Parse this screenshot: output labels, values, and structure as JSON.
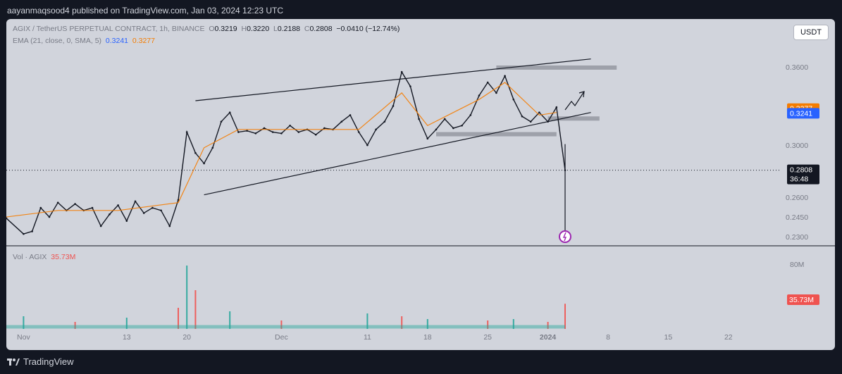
{
  "header": {
    "publisher_line": "aayanmaqsood4 published on TradingView.com, Jan 03, 2024 12:23 UTC"
  },
  "legend": {
    "symbol": "AGIX / TetherUS PERPETUAL CONTRACT, 1h, BINANCE",
    "o_label": "O",
    "o": "0.3219",
    "h_label": "H",
    "h": "0.3220",
    "l_label": "L",
    "l": "0.2188",
    "c_label": "C",
    "c": "0.2808",
    "change": "−0.0410 (−12.74%)",
    "ema_label": "EMA (21, close, 0, SMA, 5)",
    "ema_val1": "0.3241",
    "ema_val2": "0.3277",
    "vol_label": "Vol · AGIX",
    "vol_value": "35.73M"
  },
  "currency_button": "USDT",
  "price_labels": {
    "orange": "0.3277",
    "blue": "0.3241",
    "last": "0.2808",
    "countdown": "36:48",
    "volume": "35.73M"
  },
  "footer": {
    "brand": "TradingView"
  },
  "colors": {
    "background": "#131722",
    "chart_bg": "#d1d4dc",
    "candle": "#131722",
    "ema": "#f57c00",
    "ema_blue": "#2962ff",
    "volume_up": "#26a69a",
    "volume_down": "#ef5350",
    "zone": "#9598a1",
    "alert": "#9c27b0"
  },
  "chart_data": {
    "type": "line",
    "title": "AGIX / TetherUS PERPETUAL CONTRACT, 1h, BINANCE",
    "xlabel": "",
    "ylabel": "",
    "ylim": [
      0.224,
      0.375
    ],
    "y_ticks": [
      0.23,
      0.245,
      0.26,
      0.3,
      0.36
    ],
    "y_tick_labels": [
      "0.2300",
      "0.2450",
      "0.2600",
      "0.3000",
      "0.3600"
    ],
    "x_ticks": [
      {
        "date": "2023-11-01",
        "label": "Nov"
      },
      {
        "date": "2023-11-13",
        "label": "13"
      },
      {
        "date": "2023-11-20",
        "label": "20"
      },
      {
        "date": "2023-12-01",
        "label": "Dec"
      },
      {
        "date": "2023-12-11",
        "label": "11"
      },
      {
        "date": "2023-12-18",
        "label": "18"
      },
      {
        "date": "2023-12-25",
        "label": "25"
      },
      {
        "date": "2024-01-01",
        "label": "2024"
      },
      {
        "date": "2024-01-08",
        "label": "8"
      },
      {
        "date": "2024-01-15",
        "label": "15"
      },
      {
        "date": "2024-01-22",
        "label": "22"
      }
    ],
    "x_range": [
      "2023-10-30",
      "2024-01-28"
    ],
    "series": [
      {
        "name": "Price",
        "x": [
          "2023-10-30",
          "2023-11-01",
          "2023-11-02",
          "2023-11-03",
          "2023-11-04",
          "2023-11-05",
          "2023-11-06",
          "2023-11-07",
          "2023-11-08",
          "2023-11-09",
          "2023-11-10",
          "2023-11-11",
          "2023-11-12",
          "2023-11-13",
          "2023-11-14",
          "2023-11-15",
          "2023-11-16",
          "2023-11-17",
          "2023-11-18",
          "2023-11-19",
          "2023-11-20",
          "2023-11-21",
          "2023-11-22",
          "2023-11-23",
          "2023-11-24",
          "2023-11-25",
          "2023-11-26",
          "2023-11-27",
          "2023-11-28",
          "2023-11-29",
          "2023-11-30",
          "2023-12-01",
          "2023-12-02",
          "2023-12-03",
          "2023-12-04",
          "2023-12-05",
          "2023-12-06",
          "2023-12-07",
          "2023-12-08",
          "2023-12-09",
          "2023-12-10",
          "2023-12-11",
          "2023-12-12",
          "2023-12-13",
          "2023-12-14",
          "2023-12-15",
          "2023-12-16",
          "2023-12-17",
          "2023-12-18",
          "2023-12-19",
          "2023-12-20",
          "2023-12-21",
          "2023-12-22",
          "2023-12-23",
          "2023-12-24",
          "2023-12-25",
          "2023-12-26",
          "2023-12-27",
          "2023-12-28",
          "2023-12-29",
          "2023-12-30",
          "2023-12-31",
          "2024-01-01",
          "2024-01-02",
          "2024-01-03"
        ],
        "values": [
          0.244,
          0.232,
          0.234,
          0.252,
          0.245,
          0.256,
          0.25,
          0.255,
          0.25,
          0.252,
          0.238,
          0.247,
          0.254,
          0.242,
          0.257,
          0.248,
          0.252,
          0.25,
          0.238,
          0.258,
          0.31,
          0.294,
          0.286,
          0.298,
          0.318,
          0.325,
          0.31,
          0.311,
          0.309,
          0.313,
          0.31,
          0.309,
          0.315,
          0.31,
          0.312,
          0.308,
          0.313,
          0.312,
          0.318,
          0.323,
          0.31,
          0.3,
          0.312,
          0.318,
          0.33,
          0.356,
          0.345,
          0.32,
          0.305,
          0.312,
          0.32,
          0.313,
          0.315,
          0.323,
          0.338,
          0.348,
          0.34,
          0.353,
          0.335,
          0.322,
          0.318,
          0.325,
          0.318,
          0.329,
          0.2808
        ]
      },
      {
        "name": "EMA (21, close, 0, SMA, 5)",
        "x": [
          "2023-10-30",
          "2023-11-05",
          "2023-11-12",
          "2023-11-19",
          "2023-11-22",
          "2023-11-26",
          "2023-12-03",
          "2023-12-10",
          "2023-12-15",
          "2023-12-18",
          "2023-12-24",
          "2023-12-27",
          "2023-12-31",
          "2024-01-02"
        ],
        "values": [
          0.245,
          0.25,
          0.25,
          0.256,
          0.298,
          0.312,
          0.312,
          0.312,
          0.34,
          0.315,
          0.335,
          0.348,
          0.323,
          0.325
        ]
      },
      {
        "name": "Vol · AGIX",
        "x": [
          "2023-11-01",
          "2023-11-07",
          "2023-11-13",
          "2023-11-19",
          "2023-11-20",
          "2023-11-21",
          "2023-11-25",
          "2023-12-01",
          "2023-12-11",
          "2023-12-15",
          "2023-12-18",
          "2023-12-25",
          "2023-12-28",
          "2024-01-01",
          "2024-01-03"
        ],
        "values": [
          18,
          10,
          16,
          30,
          90,
          55,
          25,
          12,
          22,
          18,
          14,
          12,
          14,
          10,
          35.73
        ]
      }
    ],
    "annotations": [
      {
        "type": "zone",
        "from": "2023-12-26",
        "to": "2024-01-09",
        "y": [
          0.358,
          0.361
        ]
      },
      {
        "type": "zone",
        "from": "2023-12-19",
        "to": "2024-01-02",
        "y": [
          0.307,
          0.31
        ]
      },
      {
        "type": "zone",
        "from": "2024-01-01",
        "to": "2024-01-07",
        "y": [
          0.319,
          0.322
        ]
      },
      {
        "type": "trendline",
        "from": [
          "2023-11-21",
          0.334
        ],
        "to": [
          "2024-01-06",
          0.366
        ]
      },
      {
        "type": "trendline",
        "from": [
          "2023-11-22",
          0.262
        ],
        "to": [
          "2024-01-06",
          0.325
        ]
      }
    ],
    "grid": false,
    "legend": "top-left"
  }
}
